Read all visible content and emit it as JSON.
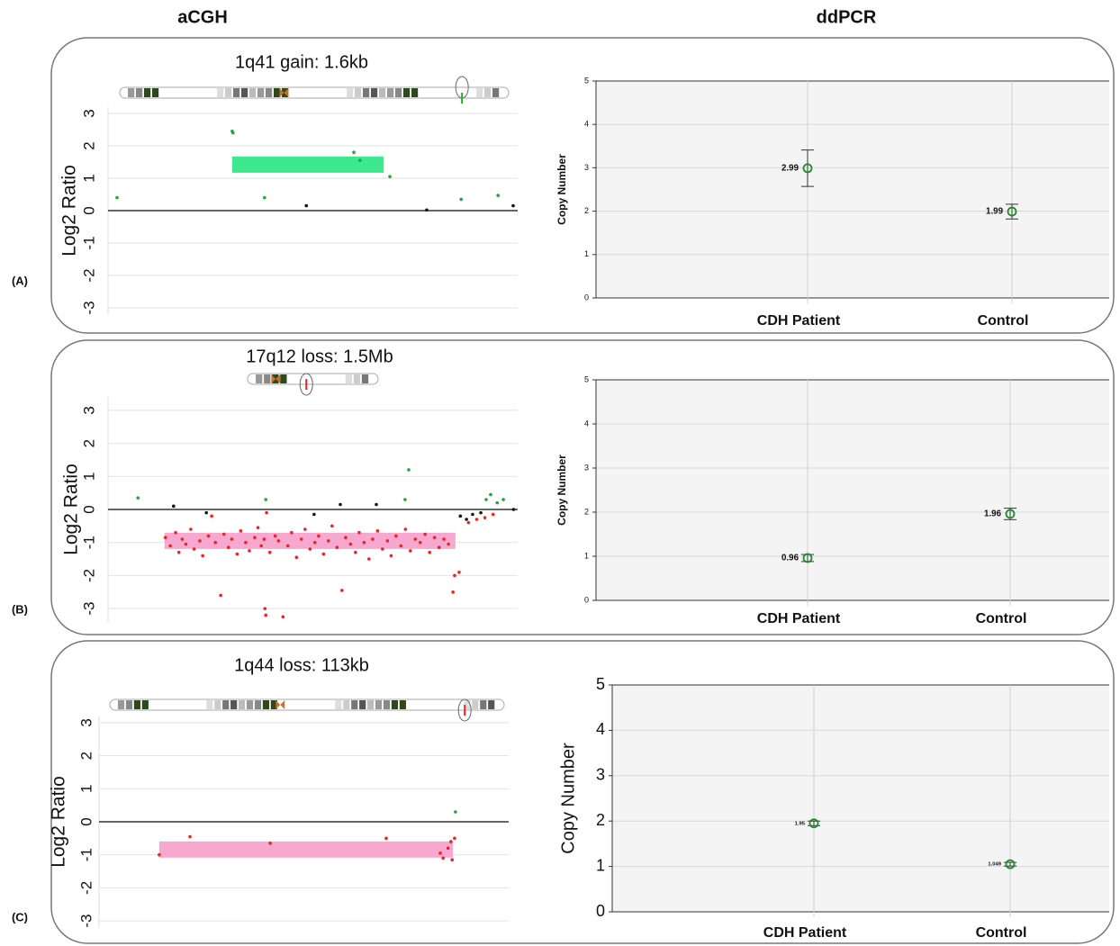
{
  "headers": [
    "aCGH",
    "ddPCR"
  ],
  "panel_labels": [
    "(A)",
    "(B)",
    "(C)"
  ],
  "chart_data": [
    {
      "type": "scatter",
      "title": "1q41 gain: 1.6kb",
      "y_label": "Log2 Ratio",
      "xlim": [
        0,
        100
      ],
      "ylim": [
        -3.2,
        3.2
      ],
      "yticks": [
        -3,
        -2,
        -1,
        0,
        1,
        2,
        3
      ],
      "grid": true,
      "segment": {
        "x": [
          30.3,
          67.3
        ],
        "value": 1.42,
        "color": "#3ee88f"
      },
      "series": [
        {
          "color": "#22a83a",
          "x": [
            2.2,
            30.3,
            30.5,
            38.2,
            60,
            61.5,
            68.8,
            86.2,
            95.2
          ],
          "y": [
            0.4,
            2.45,
            2.4,
            0.4,
            1.8,
            1.55,
            1.05,
            0.35,
            0.47
          ]
        },
        {
          "color": "#111111",
          "x": [
            48.4,
            77.8,
            98.9
          ],
          "y": [
            0.15,
            0.02,
            0.15
          ]
        }
      ]
    },
    {
      "type": "errorbar",
      "y_label": "Copy Number",
      "categories": [
        "CDH Patient",
        "Control"
      ],
      "values": [
        2.99,
        1.99
      ],
      "errors": [
        0.42,
        0.17
      ],
      "color": "#1e8a2e",
      "ylim": [
        0,
        5
      ],
      "yticks": [
        0,
        1,
        2,
        3,
        4,
        5
      ],
      "grid": true
    },
    {
      "type": "scatter",
      "title": "17q12 loss: 1.5Mb",
      "y_label": "Log2 Ratio",
      "xlim": [
        0,
        100
      ],
      "ylim": [
        -3.4,
        3.4
      ],
      "yticks": [
        -3,
        -2,
        -1,
        0,
        1,
        2,
        3
      ],
      "grid": true,
      "segment": {
        "x": [
          13.8,
          84.8
        ],
        "value": -0.95,
        "color": "#f7a8cf"
      },
      "series": [
        {
          "color": "#ee2222",
          "x": [
            14,
            15.2,
            16.5,
            17.3,
            18.1,
            19,
            20.2,
            21,
            22.4,
            23.1,
            24.5,
            25.3,
            26.2,
            27.5,
            28.3,
            29.4,
            30.2,
            31.5,
            32.4,
            33.6,
            34.5,
            35.8,
            36.6,
            37.4,
            38.1,
            38.3,
            38.5,
            38.7,
            39.5,
            40.8,
            41.6,
            42.7,
            43.9,
            44.8,
            46,
            47.2,
            48.1,
            49.3,
            50.5,
            51.4,
            52.6,
            53.8,
            54.7,
            55.9,
            57.1,
            58,
            59.2,
            60.4,
            61.3,
            62.5,
            63.7,
            64.6,
            65.8,
            67,
            68.2,
            69.1,
            70.3,
            71.5,
            72.6,
            73.8,
            75,
            76.2,
            77.4,
            78.5,
            79.7,
            80.8,
            82,
            83.1,
            84.2,
            84.6,
            85.7,
            88,
            90,
            92,
            94
          ],
          "y": [
            -0.85,
            -1.1,
            -0.7,
            -1.3,
            -0.9,
            -1.05,
            -0.6,
            -1.2,
            -0.95,
            -1.4,
            -0.8,
            -0.2,
            -1.0,
            -2.6,
            -0.75,
            -1.15,
            -0.9,
            -1.35,
            -0.65,
            -1.0,
            -1.25,
            -0.85,
            -0.55,
            -1.1,
            -0.9,
            -3.0,
            -3.2,
            -0.1,
            -1.3,
            -0.8,
            -0.95,
            -3.25,
            -1.1,
            -0.7,
            -1.45,
            -0.9,
            -0.6,
            -1.2,
            -1.0,
            -0.8,
            -1.35,
            -0.95,
            -0.5,
            -1.15,
            -2.45,
            -0.85,
            -1.05,
            -1.3,
            -0.7,
            -1.0,
            -1.5,
            -0.9,
            -0.65,
            -1.2,
            -0.95,
            -1.4,
            -0.8,
            -1.1,
            -0.6,
            -1.25,
            -0.9,
            -1.0,
            -0.75,
            -1.3,
            -0.85,
            -1.15,
            -0.9,
            -1.05,
            -2.5,
            -2.0,
            -1.9,
            -0.4,
            -0.3,
            -0.25,
            -0.15
          ]
        },
        {
          "color": "#111111",
          "x": [
            16,
            24,
            50.3,
            56.7,
            65.5,
            86,
            87.5,
            89,
            91,
            99
          ],
          "y": [
            0.1,
            -0.1,
            -0.15,
            0.15,
            0.15,
            -0.2,
            -0.3,
            -0.15,
            -0.1,
            0.0
          ]
        },
        {
          "color": "#22a83a",
          "x": [
            7.3,
            38.5,
            72.5,
            73.4,
            92.3,
            93.4,
            95,
            96.5
          ],
          "y": [
            0.35,
            0.3,
            0.3,
            1.2,
            0.3,
            0.45,
            0.2,
            0.3
          ]
        }
      ]
    },
    {
      "type": "errorbar",
      "y_label": "Copy Number",
      "categories": [
        "CDH Patient",
        "Control"
      ],
      "values": [
        0.96,
        1.96
      ],
      "errors": [
        0.08,
        0.13
      ],
      "color": "#1e8a2e",
      "ylim": [
        0,
        5
      ],
      "yticks": [
        0,
        1,
        2,
        3,
        4,
        5
      ],
      "grid": true
    },
    {
      "type": "scatter",
      "title": "1q44 loss: 113kb",
      "y_label": "Log2 Ratio",
      "xlim": [
        0,
        100
      ],
      "ylim": [
        -3.2,
        3.2
      ],
      "yticks": [
        -3,
        -2,
        -1,
        0,
        1,
        2,
        3
      ],
      "grid": true,
      "segment": {
        "x": [
          14.7,
          86.4
        ],
        "value": -0.84,
        "color": "#f7a8cf"
      },
      "series": [
        {
          "color": "#ee2222",
          "x": [
            14.7,
            22.2,
            41.8,
            70.1,
            83.3,
            84,
            85.2,
            85.9,
            86.2,
            86.8
          ],
          "y": [
            -1.0,
            -0.45,
            -0.65,
            -0.5,
            -0.95,
            -1.1,
            -0.8,
            -0.6,
            -1.15,
            -0.5
          ]
        },
        {
          "color": "#22a83a",
          "x": [
            87
          ],
          "y": [
            0.3
          ]
        }
      ]
    },
    {
      "type": "errorbar",
      "y_label": "Copy Number",
      "categories": [
        "CDH Patient",
        "Control"
      ],
      "values": [
        1.95,
        1.049
      ],
      "errors": [
        0.05,
        0.04
      ],
      "color": "#1e8a2e",
      "ylim": [
        0,
        5
      ],
      "yticks": [
        0,
        1,
        2,
        3,
        4,
        5
      ],
      "grid": true
    }
  ]
}
